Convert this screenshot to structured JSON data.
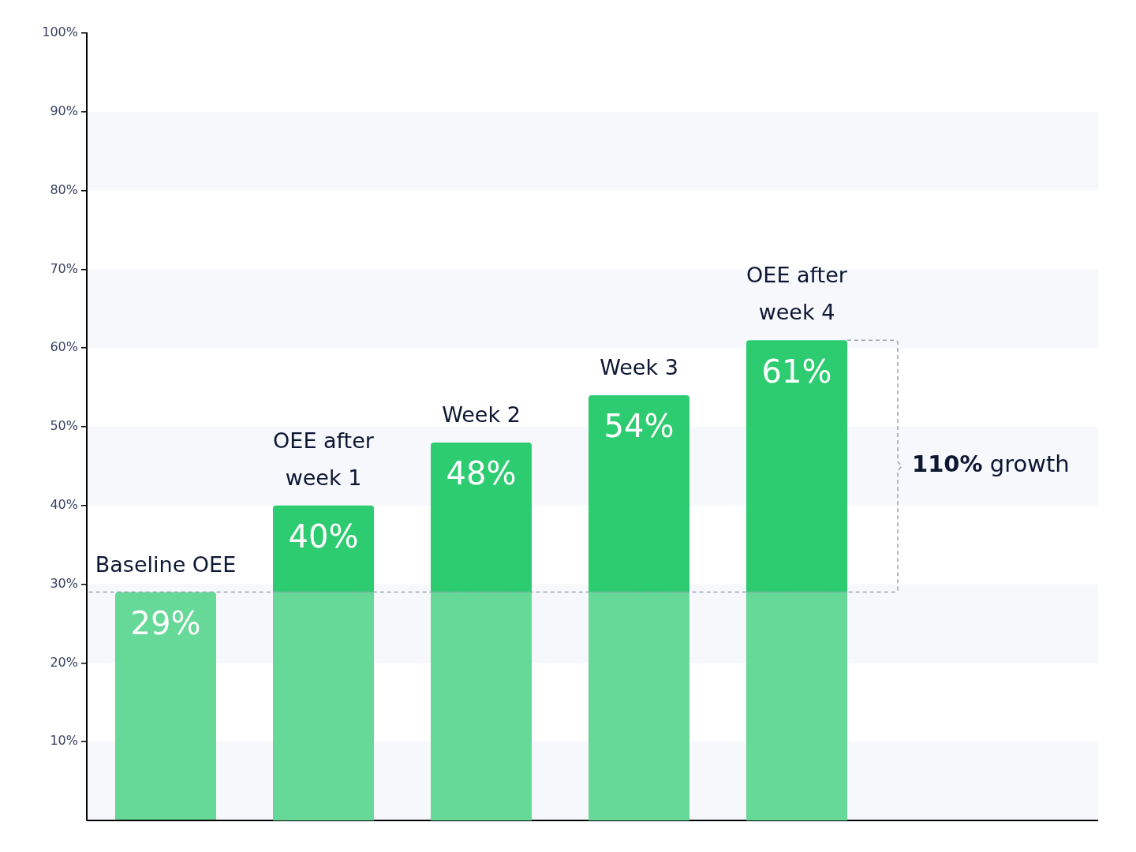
{
  "chart_data": {
    "type": "bar",
    "categories": [
      "Baseline OEE",
      "OEE after week 1",
      "Week 2",
      "Week 3",
      "OEE after week 4"
    ],
    "values": [
      29,
      40,
      48,
      54,
      61
    ],
    "value_labels": [
      "29%",
      "40%",
      "48%",
      "54%",
      "61%"
    ],
    "data_labels": true,
    "colors": [
      "#66d897",
      "#2ecc71",
      "#2ecc71",
      "#2ecc71",
      "#2ecc71"
    ],
    "ylim": [
      0,
      100
    ],
    "yticks": [
      {
        "value": 10,
        "label": "10%"
      },
      {
        "value": 20,
        "label": "20%"
      },
      {
        "value": 30,
        "label": "30%"
      },
      {
        "value": 40,
        "label": "40%"
      },
      {
        "value": 50,
        "label": "50%"
      },
      {
        "value": 60,
        "label": "60%"
      },
      {
        "value": 70,
        "label": "70%"
      },
      {
        "value": 80,
        "label": "80%"
      },
      {
        "value": 90,
        "label": "90%"
      },
      {
        "value": 100,
        "label": "100%"
      }
    ],
    "grid": true,
    "annotations": [
      {
        "text": "110% growth",
        "bold": "110%"
      }
    ]
  }
}
